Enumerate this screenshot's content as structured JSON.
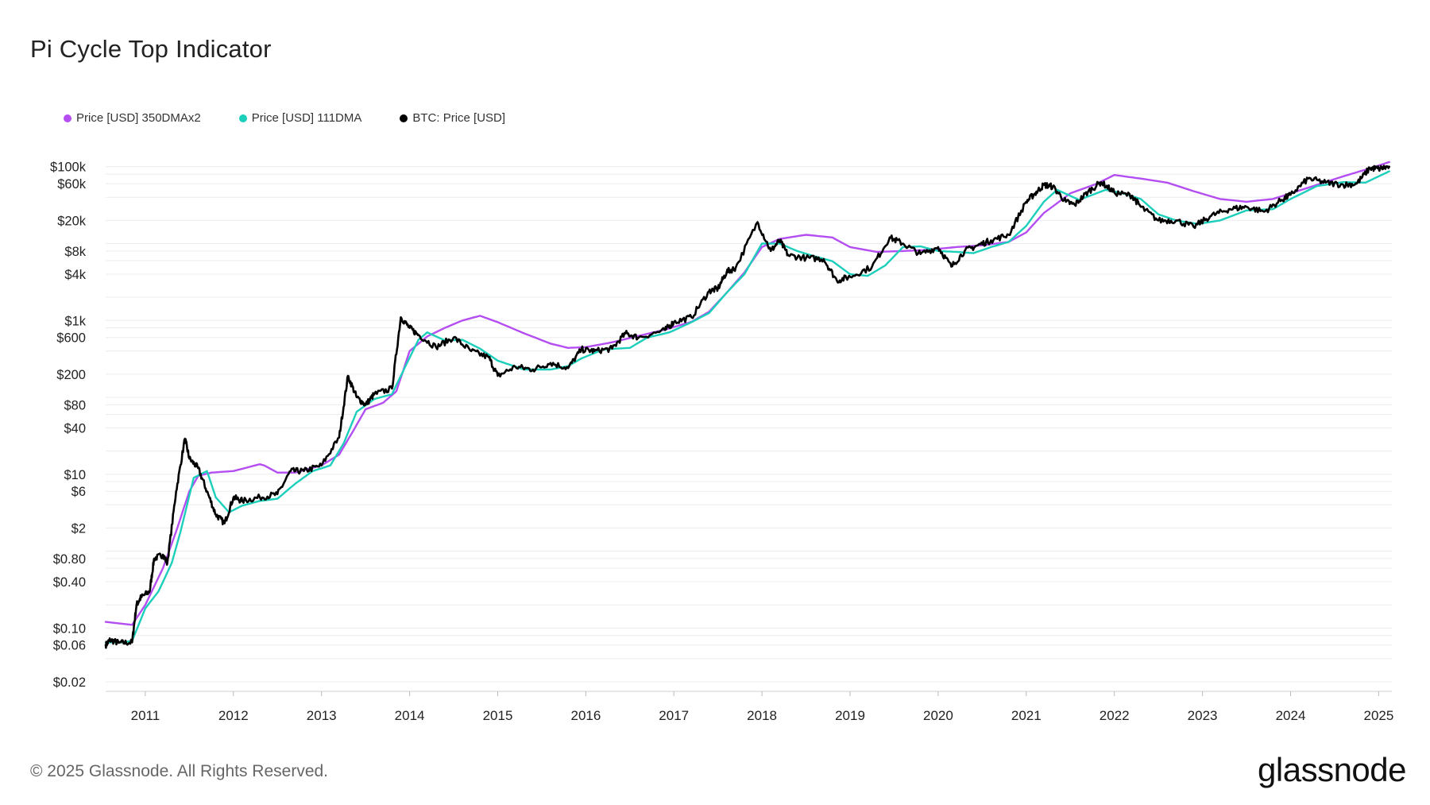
{
  "title": "Pi Cycle Top Indicator",
  "legend": [
    {
      "label": "Price [USD] 350DMAx2",
      "color": "#b44ef2"
    },
    {
      "label": "Price [USD] 111DMA",
      "color": "#1bcfbb"
    },
    {
      "label": "BTC: Price [USD]",
      "color": "#000000"
    }
  ],
  "footer": "© 2025 Glassnode. All Rights Reserved.",
  "brand": "glassnode",
  "chart_data": {
    "type": "line",
    "y_scale": "log",
    "ylim": [
      0.015,
      160000
    ],
    "xlim": [
      2010.55,
      2025.15
    ],
    "y_ticks": [
      {
        "label": "$100k",
        "value": 100000
      },
      {
        "label": "$60k",
        "value": 60000
      },
      {
        "label": "$20k",
        "value": 20000
      },
      {
        "label": "$8k",
        "value": 8000
      },
      {
        "label": "$4k",
        "value": 4000
      },
      {
        "label": "$1k",
        "value": 1000
      },
      {
        "label": "$600",
        "value": 600
      },
      {
        "label": "$200",
        "value": 200
      },
      {
        "label": "$80",
        "value": 80
      },
      {
        "label": "$40",
        "value": 40
      },
      {
        "label": "$10",
        "value": 10
      },
      {
        "label": "$6",
        "value": 6
      },
      {
        "label": "$2",
        "value": 2
      },
      {
        "label": "$0.80",
        "value": 0.8
      },
      {
        "label": "$0.40",
        "value": 0.4
      },
      {
        "label": "$0.10",
        "value": 0.1
      },
      {
        "label": "$0.06",
        "value": 0.06
      },
      {
        "label": "$0.02",
        "value": 0.02
      }
    ],
    "grid_values": [
      100000,
      80000,
      60000,
      40000,
      20000,
      10000,
      8000,
      6000,
      4000,
      2000,
      1000,
      800,
      600,
      400,
      200,
      100,
      80,
      60,
      40,
      20,
      10,
      8,
      6,
      4,
      2,
      1,
      0.8,
      0.6,
      0.4,
      0.2,
      0.1,
      0.08,
      0.06,
      0.04,
      0.02
    ],
    "x_ticks": [
      "2011",
      "2012",
      "2013",
      "2014",
      "2015",
      "2016",
      "2017",
      "2018",
      "2019",
      "2020",
      "2021",
      "2022",
      "2023",
      "2024",
      "2025"
    ],
    "x_tick_values": [
      2011,
      2012,
      2013,
      2014,
      2015,
      2016,
      2017,
      2018,
      2019,
      2020,
      2021,
      2022,
      2023,
      2024,
      2025
    ],
    "grid": "horizontal",
    "legend_position": "top-left",
    "series": [
      {
        "name": "Price [USD] 350DMAx2",
        "color": "#b44ef2",
        "points": [
          [
            2010.55,
            0.12
          ],
          [
            2010.85,
            0.11
          ],
          [
            2011.0,
            0.2
          ],
          [
            2011.2,
            0.6
          ],
          [
            2011.35,
            1.8
          ],
          [
            2011.5,
            6
          ],
          [
            2011.6,
            9.5
          ],
          [
            2011.75,
            10.5
          ],
          [
            2012.0,
            11
          ],
          [
            2012.3,
            13.5
          ],
          [
            2012.35,
            13
          ],
          [
            2012.5,
            10.5
          ],
          [
            2012.7,
            10.5
          ],
          [
            2013.0,
            13
          ],
          [
            2013.2,
            18
          ],
          [
            2013.35,
            35
          ],
          [
            2013.5,
            70
          ],
          [
            2013.7,
            85
          ],
          [
            2013.85,
            120
          ],
          [
            2014.0,
            400
          ],
          [
            2014.2,
            620
          ],
          [
            2014.4,
            800
          ],
          [
            2014.6,
            1000
          ],
          [
            2014.8,
            1150
          ],
          [
            2015.0,
            950
          ],
          [
            2015.3,
            680
          ],
          [
            2015.6,
            500
          ],
          [
            2015.8,
            440
          ],
          [
            2016.0,
            450
          ],
          [
            2016.3,
            520
          ],
          [
            2016.6,
            630
          ],
          [
            2016.9,
            760
          ],
          [
            2017.2,
            960
          ],
          [
            2017.4,
            1300
          ],
          [
            2017.6,
            2300
          ],
          [
            2017.8,
            4200
          ],
          [
            2018.0,
            9000
          ],
          [
            2018.2,
            11500
          ],
          [
            2018.5,
            13000
          ],
          [
            2018.8,
            12000
          ],
          [
            2019.0,
            9000
          ],
          [
            2019.3,
            7800
          ],
          [
            2019.6,
            8000
          ],
          [
            2019.9,
            8300
          ],
          [
            2020.2,
            9000
          ],
          [
            2020.5,
            9500
          ],
          [
            2020.8,
            10500
          ],
          [
            2021.0,
            14000
          ],
          [
            2021.2,
            25000
          ],
          [
            2021.5,
            45000
          ],
          [
            2021.8,
            60000
          ],
          [
            2022.0,
            78000
          ],
          [
            2022.3,
            70000
          ],
          [
            2022.6,
            62000
          ],
          [
            2022.9,
            48000
          ],
          [
            2023.2,
            38000
          ],
          [
            2023.5,
            35000
          ],
          [
            2023.8,
            38000
          ],
          [
            2024.0,
            45000
          ],
          [
            2024.3,
            58000
          ],
          [
            2024.6,
            75000
          ],
          [
            2024.9,
            95000
          ],
          [
            2025.12,
            115000
          ]
        ]
      },
      {
        "name": "Price [USD] 111DMA",
        "color": "#1bcfbb",
        "points": [
          [
            2010.55,
            0.065
          ],
          [
            2010.75,
            0.065
          ],
          [
            2010.85,
            0.068
          ],
          [
            2011.0,
            0.18
          ],
          [
            2011.15,
            0.3
          ],
          [
            2011.3,
            0.7
          ],
          [
            2011.4,
            1.8
          ],
          [
            2011.55,
            9
          ],
          [
            2011.7,
            11
          ],
          [
            2011.8,
            5
          ],
          [
            2011.95,
            3.2
          ],
          [
            2012.1,
            3.9
          ],
          [
            2012.3,
            4.5
          ],
          [
            2012.5,
            4.8
          ],
          [
            2012.7,
            7.5
          ],
          [
            2012.9,
            11
          ],
          [
            2013.1,
            13
          ],
          [
            2013.25,
            25
          ],
          [
            2013.4,
            65
          ],
          [
            2013.6,
            95
          ],
          [
            2013.8,
            110
          ],
          [
            2013.95,
            250
          ],
          [
            2014.1,
            560
          ],
          [
            2014.2,
            700
          ],
          [
            2014.4,
            550
          ],
          [
            2014.6,
            560
          ],
          [
            2014.8,
            430
          ],
          [
            2015.0,
            300
          ],
          [
            2015.3,
            230
          ],
          [
            2015.6,
            230
          ],
          [
            2015.8,
            255
          ],
          [
            2015.95,
            320
          ],
          [
            2016.2,
            420
          ],
          [
            2016.5,
            440
          ],
          [
            2016.7,
            600
          ],
          [
            2016.95,
            700
          ],
          [
            2017.2,
            950
          ],
          [
            2017.4,
            1250
          ],
          [
            2017.6,
            2300
          ],
          [
            2017.8,
            4000
          ],
          [
            2018.0,
            10000
          ],
          [
            2018.2,
            10000
          ],
          [
            2018.4,
            8000
          ],
          [
            2018.6,
            6800
          ],
          [
            2018.8,
            5900
          ],
          [
            2019.0,
            4000
          ],
          [
            2019.2,
            3800
          ],
          [
            2019.4,
            5200
          ],
          [
            2019.6,
            9000
          ],
          [
            2019.8,
            9200
          ],
          [
            2020.0,
            8000
          ],
          [
            2020.2,
            7800
          ],
          [
            2020.4,
            7500
          ],
          [
            2020.6,
            9000
          ],
          [
            2020.8,
            10500
          ],
          [
            2021.0,
            17000
          ],
          [
            2021.2,
            35000
          ],
          [
            2021.35,
            50000
          ],
          [
            2021.6,
            37000
          ],
          [
            2021.9,
            50000
          ],
          [
            2022.1,
            45000
          ],
          [
            2022.3,
            38000
          ],
          [
            2022.5,
            24000
          ],
          [
            2022.7,
            20000
          ],
          [
            2022.95,
            18000
          ],
          [
            2023.2,
            20000
          ],
          [
            2023.5,
            27000
          ],
          [
            2023.8,
            28000
          ],
          [
            2024.0,
            38000
          ],
          [
            2024.3,
            56000
          ],
          [
            2024.6,
            63000
          ],
          [
            2024.85,
            62000
          ],
          [
            2025.12,
            87000
          ]
        ]
      },
      {
        "name": "BTC: Price [USD]",
        "color": "#000000",
        "points": [
          [
            2010.55,
            0.06
          ],
          [
            2010.6,
            0.07
          ],
          [
            2010.7,
            0.064
          ],
          [
            2010.85,
            0.065
          ],
          [
            2010.9,
            0.2
          ],
          [
            2010.95,
            0.25
          ],
          [
            2011.05,
            0.3
          ],
          [
            2011.1,
            0.8
          ],
          [
            2011.2,
            0.9
          ],
          [
            2011.25,
            0.7
          ],
          [
            2011.35,
            6
          ],
          [
            2011.45,
            29
          ],
          [
            2011.5,
            16
          ],
          [
            2011.6,
            12
          ],
          [
            2011.7,
            6
          ],
          [
            2011.8,
            3
          ],
          [
            2011.9,
            2.3
          ],
          [
            2012.0,
            5
          ],
          [
            2012.1,
            4.5
          ],
          [
            2012.3,
            5
          ],
          [
            2012.5,
            5.5
          ],
          [
            2012.65,
            11
          ],
          [
            2012.8,
            11
          ],
          [
            2013.0,
            13
          ],
          [
            2013.2,
            30
          ],
          [
            2013.3,
            190
          ],
          [
            2013.4,
            100
          ],
          [
            2013.5,
            80
          ],
          [
            2013.6,
            110
          ],
          [
            2013.8,
            130
          ],
          [
            2013.9,
            1100
          ],
          [
            2014.0,
            800
          ],
          [
            2014.1,
            650
          ],
          [
            2014.3,
            450
          ],
          [
            2014.5,
            600
          ],
          [
            2014.7,
            400
          ],
          [
            2014.9,
            330
          ],
          [
            2015.0,
            190
          ],
          [
            2015.2,
            250
          ],
          [
            2015.4,
            230
          ],
          [
            2015.6,
            280
          ],
          [
            2015.8,
            240
          ],
          [
            2015.95,
            420
          ],
          [
            2016.1,
            400
          ],
          [
            2016.3,
            430
          ],
          [
            2016.45,
            680
          ],
          [
            2016.6,
            600
          ],
          [
            2016.9,
            750
          ],
          [
            2017.0,
            950
          ],
          [
            2017.2,
            1100
          ],
          [
            2017.4,
            2400
          ],
          [
            2017.5,
            2600
          ],
          [
            2017.6,
            4300
          ],
          [
            2017.7,
            4800
          ],
          [
            2017.95,
            19000
          ],
          [
            2018.1,
            8000
          ],
          [
            2018.2,
            11000
          ],
          [
            2018.3,
            7000
          ],
          [
            2018.5,
            6500
          ],
          [
            2018.7,
            6300
          ],
          [
            2018.85,
            3300
          ],
          [
            2019.0,
            3700
          ],
          [
            2019.25,
            5000
          ],
          [
            2019.45,
            12000
          ],
          [
            2019.6,
            10000
          ],
          [
            2019.8,
            7300
          ],
          [
            2020.0,
            9000
          ],
          [
            2020.15,
            5000
          ],
          [
            2020.3,
            8000
          ],
          [
            2020.45,
            9500
          ],
          [
            2020.6,
            11000
          ],
          [
            2020.8,
            13000
          ],
          [
            2021.0,
            35000
          ],
          [
            2021.1,
            45000
          ],
          [
            2021.2,
            58000
          ],
          [
            2021.3,
            55000
          ],
          [
            2021.45,
            35000
          ],
          [
            2021.55,
            32000
          ],
          [
            2021.7,
            47000
          ],
          [
            2021.85,
            63000
          ],
          [
            2022.0,
            46000
          ],
          [
            2022.2,
            42000
          ],
          [
            2022.3,
            30000
          ],
          [
            2022.5,
            20000
          ],
          [
            2022.7,
            20000
          ],
          [
            2022.9,
            16500
          ],
          [
            2023.1,
            23000
          ],
          [
            2023.3,
            28000
          ],
          [
            2023.5,
            30000
          ],
          [
            2023.7,
            26000
          ],
          [
            2023.9,
            37000
          ],
          [
            2024.0,
            43000
          ],
          [
            2024.2,
            70000
          ],
          [
            2024.4,
            62000
          ],
          [
            2024.6,
            58000
          ],
          [
            2024.75,
            60000
          ],
          [
            2024.9,
            96000
          ],
          [
            2025.0,
            94000
          ],
          [
            2025.12,
            100000
          ]
        ]
      }
    ]
  }
}
